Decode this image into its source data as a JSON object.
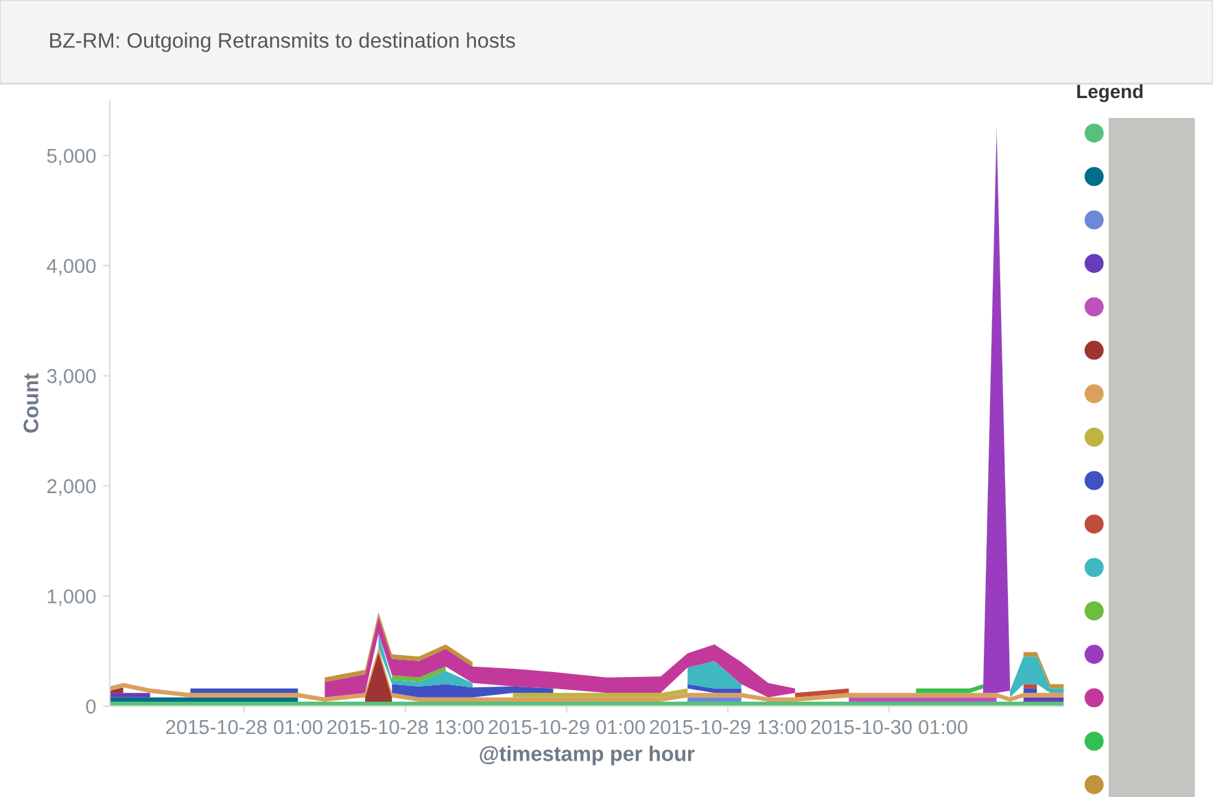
{
  "chart_data": {
    "type": "area",
    "stacked": true,
    "title": "BZ-RM: Outgoing Retransmits to destination hosts",
    "xlabel": "@timestamp per hour",
    "ylabel": "Count",
    "legend_title": "Legend",
    "grid": false,
    "x": [
      "2015-10-27T15:00",
      "2015-10-27T16:00",
      "2015-10-27T18:00",
      "2015-10-27T21:00",
      "2015-10-28T01:00",
      "2015-10-28T05:00",
      "2015-10-28T07:00",
      "2015-10-28T10:00",
      "2015-10-28T11:00",
      "2015-10-28T12:00",
      "2015-10-28T14:00",
      "2015-10-28T16:00",
      "2015-10-28T18:00",
      "2015-10-28T21:00",
      "2015-10-29T00:00",
      "2015-10-29T04:00",
      "2015-10-29T08:00",
      "2015-10-29T10:00",
      "2015-10-29T12:00",
      "2015-10-29T14:00",
      "2015-10-29T16:00",
      "2015-10-29T18:00",
      "2015-10-29T22:00",
      "2015-10-30T03:00",
      "2015-10-30T07:00",
      "2015-10-30T08:00",
      "2015-10-30T09:00",
      "2015-10-30T10:00",
      "2015-10-30T11:00",
      "2015-10-30T12:00",
      "2015-10-30T13:00",
      "2015-10-30T14:00"
    ],
    "xlim": [
      "2015-10-27T15:00",
      "2015-10-30T14:00"
    ],
    "xticks": [
      {
        "value": "2015-10-28T01:00",
        "label": "2015-10-28 01:00"
      },
      {
        "value": "2015-10-28T13:00",
        "label": "2015-10-28 13:00"
      },
      {
        "value": "2015-10-29T01:00",
        "label": "2015-10-29 01:00"
      },
      {
        "value": "2015-10-29T13:00",
        "label": "2015-10-29 13:00"
      },
      {
        "value": "2015-10-30T01:00",
        "label": "2015-10-30 01:00"
      }
    ],
    "ylim": [
      0,
      5500
    ],
    "yticks": [
      0,
      {
        "value": 1000,
        "label": "1,000"
      },
      {
        "value": 2000,
        "label": "2,000"
      },
      {
        "value": 3000,
        "label": "3,000"
      },
      {
        "value": 4000,
        "label": "4,000"
      },
      {
        "value": 5000,
        "label": "5,000"
      }
    ],
    "series": [
      {
        "color": "#57c17b",
        "values": [
          40,
          40,
          40,
          40,
          40,
          40,
          40,
          40,
          40,
          40,
          40,
          40,
          40,
          40,
          40,
          40,
          40,
          40,
          40,
          40,
          40,
          40,
          40,
          40,
          40,
          40,
          40,
          40,
          40,
          40,
          40,
          40
        ]
      },
      {
        "color": "#006e8a",
        "values": [
          40,
          40,
          40,
          40,
          40,
          40,
          null,
          null,
          null,
          null,
          null,
          null,
          null,
          null,
          null,
          null,
          null,
          null,
          null,
          null,
          null,
          null,
          null,
          null,
          null,
          null,
          null,
          null,
          null,
          null,
          null,
          null
        ]
      },
      {
        "color": "#6f87d8",
        "values": [
          null,
          null,
          null,
          null,
          null,
          null,
          null,
          null,
          null,
          null,
          null,
          null,
          null,
          null,
          null,
          null,
          null,
          40,
          40,
          40,
          null,
          null,
          null,
          null,
          null,
          null,
          null,
          null,
          null,
          null,
          null,
          null
        ]
      },
      {
        "color": "#663db8",
        "values": [
          40,
          40,
          40,
          null,
          null,
          null,
          null,
          null,
          null,
          null,
          null,
          null,
          null,
          null,
          null,
          null,
          null,
          null,
          null,
          null,
          null,
          null,
          null,
          null,
          null,
          null,
          null,
          null,
          40,
          40,
          40,
          40
        ]
      },
      {
        "color": "#bc52bc",
        "values": [
          null,
          null,
          null,
          null,
          null,
          null,
          null,
          null,
          null,
          null,
          null,
          null,
          null,
          null,
          null,
          null,
          null,
          null,
          null,
          null,
          null,
          null,
          40,
          40,
          40,
          40,
          40,
          null,
          null,
          null,
          null,
          null
        ]
      },
      {
        "color": "#9e3533",
        "values": [
          20,
          50,
          null,
          null,
          null,
          null,
          null,
          40,
          450,
          40,
          null,
          null,
          null,
          null,
          null,
          null,
          null,
          null,
          null,
          null,
          null,
          null,
          null,
          null,
          null,
          null,
          null,
          null,
          null,
          null,
          null,
          null
        ]
      },
      {
        "color": "#daa05d",
        "values": [
          40,
          40,
          40,
          40,
          40,
          40,
          40,
          40,
          40,
          40,
          40,
          40,
          40,
          40,
          40,
          40,
          40,
          40,
          40,
          40,
          40,
          40,
          40,
          40,
          40,
          40,
          40,
          40,
          40,
          40,
          40,
          40
        ]
      },
      {
        "color": "#bfb440",
        "values": [
          null,
          null,
          null,
          null,
          null,
          null,
          null,
          null,
          null,
          null,
          null,
          null,
          null,
          40,
          40,
          40,
          40,
          40,
          null,
          null,
          null,
          null,
          null,
          null,
          null,
          null,
          null,
          null,
          null,
          null,
          null,
          null
        ]
      },
      {
        "color": "#3f51c3",
        "values": [
          null,
          null,
          null,
          40,
          40,
          40,
          null,
          null,
          null,
          80,
          100,
          120,
          90,
          60,
          40,
          null,
          null,
          40,
          40,
          40,
          null,
          null,
          null,
          null,
          null,
          null,
          null,
          null,
          40,
          40,
          null,
          null
        ]
      },
      {
        "color": "#c04c3c",
        "values": [
          null,
          null,
          null,
          null,
          null,
          null,
          null,
          null,
          null,
          null,
          null,
          null,
          null,
          null,
          null,
          null,
          null,
          null,
          null,
          null,
          null,
          40,
          40,
          null,
          null,
          null,
          null,
          null,
          40,
          40,
          null,
          null
        ]
      },
      {
        "color": "#3fb8c1",
        "values": [
          null,
          null,
          null,
          null,
          null,
          null,
          null,
          null,
          130,
          40,
          40,
          120,
          40,
          null,
          null,
          null,
          null,
          150,
          250,
          40,
          null,
          null,
          null,
          null,
          null,
          null,
          null,
          60,
          250,
          250,
          40,
          40
        ]
      },
      {
        "color": "#6dbe3e",
        "values": [
          null,
          null,
          null,
          null,
          null,
          null,
          null,
          null,
          null,
          40,
          40,
          40,
          null,
          null,
          null,
          null,
          null,
          null,
          null,
          null,
          null,
          null,
          null,
          null,
          null,
          null,
          null,
          null,
          null,
          null,
          null,
          null
        ]
      },
      {
        "color": "#9a3cc0",
        "values": [
          null,
          null,
          null,
          null,
          null,
          null,
          null,
          null,
          null,
          null,
          null,
          null,
          null,
          null,
          null,
          null,
          null,
          null,
          null,
          null,
          null,
          null,
          null,
          null,
          null,
          40,
          5100,
          40,
          null,
          null,
          null,
          null
        ]
      },
      {
        "color": "#c3399b",
        "values": [
          null,
          null,
          null,
          null,
          null,
          null,
          140,
          170,
          150,
          150,
          150,
          160,
          150,
          160,
          150,
          140,
          150,
          130,
          150,
          200,
          130,
          40,
          null,
          null,
          null,
          null,
          null,
          null,
          null,
          null,
          null,
          null
        ]
      },
      {
        "color": "#33c050",
        "values": [
          null,
          null,
          null,
          null,
          null,
          null,
          null,
          null,
          null,
          null,
          null,
          null,
          null,
          null,
          null,
          null,
          null,
          null,
          null,
          null,
          null,
          null,
          null,
          40,
          40,
          40,
          40,
          40,
          null,
          null,
          null,
          null
        ]
      },
      {
        "color": "#c0943a",
        "values": [
          null,
          null,
          null,
          null,
          null,
          null,
          40,
          40,
          40,
          40,
          40,
          40,
          40,
          null,
          null,
          null,
          null,
          null,
          null,
          null,
          null,
          null,
          null,
          null,
          null,
          null,
          null,
          null,
          40,
          40,
          40,
          40
        ]
      }
    ]
  }
}
